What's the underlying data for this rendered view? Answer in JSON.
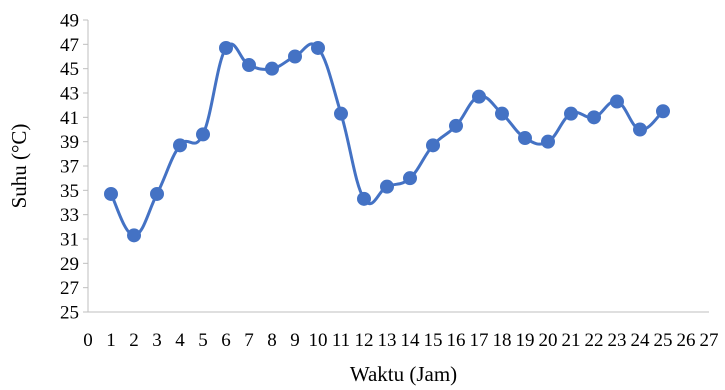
{
  "chart_data": {
    "type": "line",
    "xlabel": "Waktu (Jam)",
    "ylabel": "Suhu (°C)",
    "xlim": [
      0,
      27
    ],
    "ylim": [
      25,
      49
    ],
    "x_ticks": [
      0,
      1,
      2,
      3,
      4,
      5,
      6,
      7,
      8,
      9,
      10,
      11,
      12,
      13,
      14,
      15,
      16,
      17,
      18,
      19,
      20,
      21,
      22,
      23,
      24,
      25,
      26,
      27
    ],
    "y_ticks": [
      25,
      27,
      29,
      31,
      33,
      35,
      37,
      39,
      41,
      43,
      45,
      47,
      49
    ],
    "grid": false,
    "legend": "none",
    "line_color": "#4472C4",
    "smooth": true,
    "series": [
      {
        "x": [
          1,
          2,
          3,
          4,
          5,
          6,
          7,
          8,
          9,
          10,
          11,
          12,
          13,
          14,
          15,
          16,
          17,
          18,
          19,
          20,
          21,
          22,
          23,
          24,
          25
        ],
        "values": [
          34.7,
          31.3,
          34.7,
          38.7,
          39.6,
          46.7,
          45.3,
          45.0,
          46.0,
          46.7,
          41.3,
          34.3,
          35.3,
          36.0,
          38.7,
          40.3,
          42.7,
          41.3,
          39.3,
          39.0,
          41.3,
          41.0,
          42.3,
          40.0,
          41.5
        ]
      }
    ]
  }
}
